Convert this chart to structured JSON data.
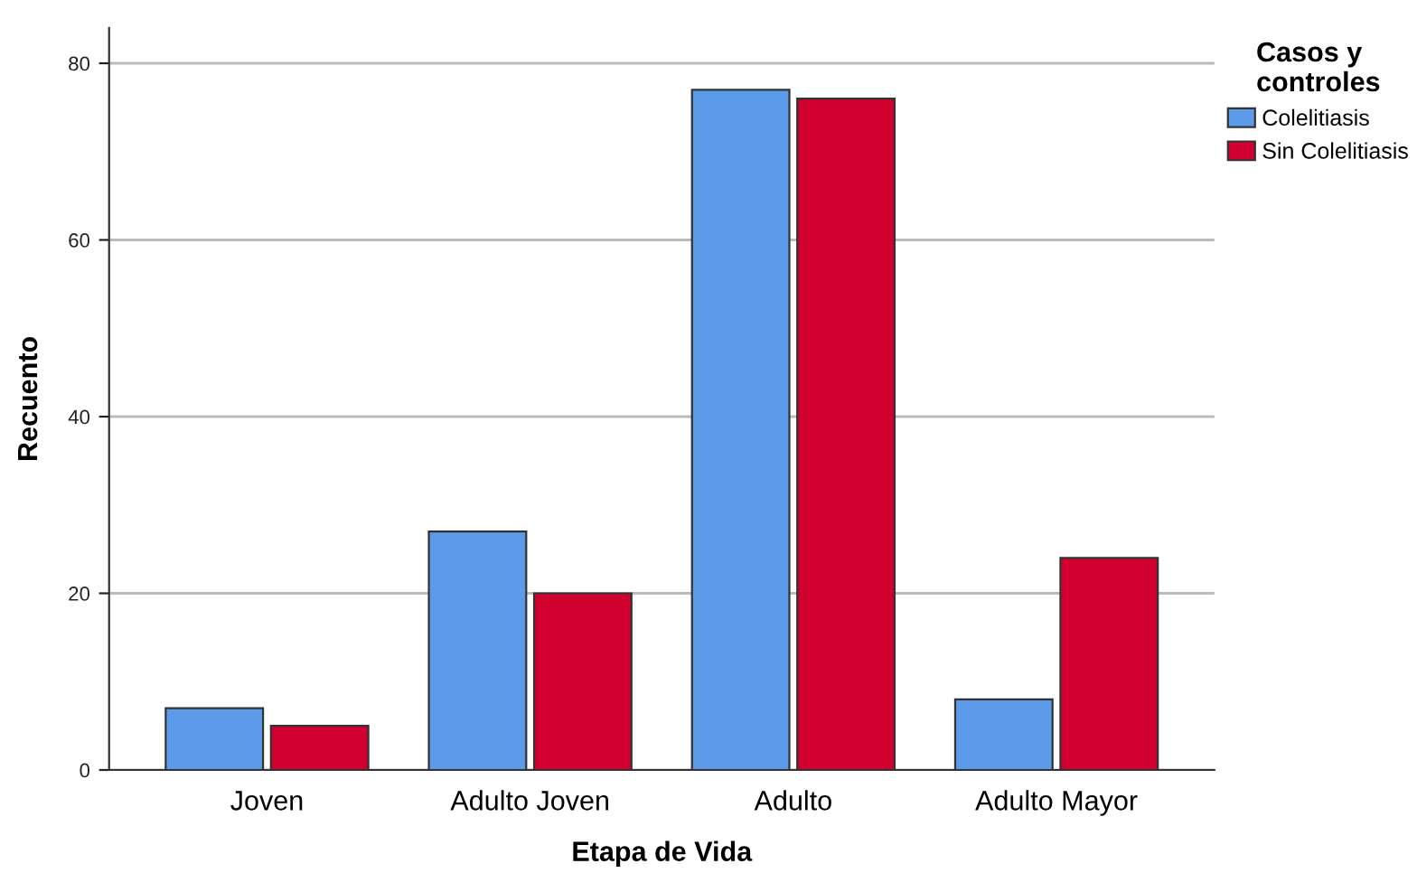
{
  "chart_data": {
    "type": "bar",
    "xlabel": "Etapa de Vida",
    "ylabel": "Recuento",
    "legend_title": "Casos y\ncontroles",
    "categories": [
      "Joven",
      "Adulto Joven",
      "Adulto",
      "Adulto Mayor"
    ],
    "series": [
      {
        "name": "Colelitiasis",
        "color": "#5b9bea",
        "values": [
          7,
          27,
          77,
          8
        ]
      },
      {
        "name": "Sin Colelitiasis",
        "color": "#d2002e",
        "values": [
          5,
          20,
          76,
          24
        ]
      }
    ],
    "ylim": [
      0,
      84
    ],
    "yticks": [
      0,
      20,
      40,
      60,
      80
    ],
    "grid": "y",
    "legend": "top right"
  }
}
